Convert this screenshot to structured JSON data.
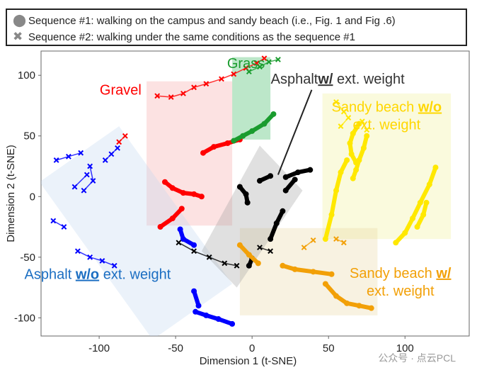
{
  "legend": {
    "items": [
      {
        "marker": "circle",
        "glyph": "⬤",
        "label": "Sequence #1: walking on the campus and sandy beach (i.e., Fig. 1 and Fig .6)"
      },
      {
        "marker": "cross",
        "glyph": "✖",
        "label": "Sequence #2: walking under the same conditions as the sequence #1"
      }
    ]
  },
  "watermark": "公众号 · 点云PCL",
  "chart_data": {
    "type": "scatter",
    "title": "",
    "xlabel": "Dimension 1 (t-SNE)",
    "ylabel": "Dimension 2 (t-SNE)",
    "xlim": [
      -138,
      142
    ],
    "ylim": [
      -115,
      120
    ],
    "xticks": [
      -100,
      -50,
      0,
      50,
      100
    ],
    "yticks": [
      -100,
      -50,
      0,
      50,
      100
    ],
    "regions": [
      {
        "name": "grass",
        "color": "#22b14c",
        "corners": [
          [
            -13,
            115
          ],
          [
            12,
            115
          ],
          [
            12,
            47
          ],
          [
            -13,
            47
          ]
        ]
      },
      {
        "name": "gravel",
        "color": "#f4a0a0",
        "corners": [
          [
            -69,
            95
          ],
          [
            -13,
            95
          ],
          [
            -13,
            -24
          ],
          [
            -69,
            -24
          ]
        ]
      },
      {
        "name": "sandy-wo",
        "color": "#f0f090",
        "corners": [
          [
            46,
            85
          ],
          [
            130,
            85
          ],
          [
            130,
            -35
          ],
          [
            46,
            -35
          ]
        ]
      },
      {
        "name": "sandy-w",
        "color": "#e8d39a",
        "corners": [
          [
            -8,
            -26
          ],
          [
            82,
            -26
          ],
          [
            82,
            -98
          ],
          [
            -8,
            -98
          ]
        ]
      },
      {
        "name": "asphalt-wo",
        "color": "#bcd4ee",
        "corners": [
          [
            -87,
            58
          ],
          [
            -139,
            12
          ],
          [
            -65,
            -118
          ],
          [
            -13,
            -72
          ]
        ]
      },
      {
        "name": "asphalt-w",
        "color": "#999999",
        "corners": [
          [
            5,
            42
          ],
          [
            -33,
            -45
          ],
          [
            -10,
            -75
          ],
          [
            33,
            5
          ]
        ]
      }
    ],
    "series": [
      {
        "name": "Gravel",
        "color": "#ff0000",
        "seq1": [
          [
            [
              -57,
              12
            ],
            [
              -52,
              7
            ],
            [
              -45,
              3
            ],
            [
              -38,
              2
            ],
            [
              -33,
              0
            ]
          ],
          [
            [
              -32,
              36
            ],
            [
              -25,
              41
            ],
            [
              -16,
              44
            ],
            [
              -8,
              47
            ]
          ],
          [
            [
              -60,
              -25
            ],
            [
              -52,
              -18
            ],
            [
              -46,
              -10
            ]
          ]
        ],
        "seq2": [
          [
            [
              -62,
              83
            ],
            [
              -53,
              82
            ],
            [
              -45,
              85
            ],
            [
              -38,
              90
            ],
            [
              -30,
              93
            ],
            [
              -20,
              97
            ],
            [
              -12,
              101
            ],
            [
              -4,
              106
            ],
            [
              3,
              110
            ],
            [
              8,
              114
            ]
          ],
          [
            [
              -83,
              50
            ],
            [
              -87,
              45
            ]
          ]
        ]
      },
      {
        "name": "Grass",
        "color": "#1a9c2e",
        "seq1": [
          [
            [
              -12,
              46
            ],
            [
              -6,
              50
            ],
            [
              0,
              54
            ],
            [
              8,
              60
            ],
            [
              14,
              68
            ]
          ]
        ],
        "seq2": [
          [
            [
              -2,
              103
            ],
            [
              5,
              107
            ],
            [
              11,
              111
            ],
            [
              17,
              113
            ]
          ]
        ]
      },
      {
        "name": "Asphalt w/o ext. weight",
        "color": "#0000ff",
        "seq1": [
          [
            [
              -47,
              -27
            ],
            [
              -45,
              -35
            ],
            [
              -38,
              -40
            ]
          ],
          [
            [
              -37,
              -95
            ],
            [
              -30,
              -98
            ],
            [
              -22,
              -101
            ],
            [
              -13,
              -105
            ]
          ],
          [
            [
              -38,
              -78
            ],
            [
              -35,
              -90
            ]
          ]
        ],
        "seq2": [
          [
            [
              -128,
              30
            ],
            [
              -120,
              33
            ],
            [
              -112,
              36
            ]
          ],
          [
            [
              -114,
              -45
            ],
            [
              -106,
              -50
            ],
            [
              -98,
              -53
            ],
            [
              -90,
              -57
            ]
          ],
          [
            [
              -130,
              -20
            ],
            [
              -123,
              -25
            ]
          ],
          [
            [
              -106,
              25
            ],
            [
              -104,
              13
            ],
            [
              -110,
              5
            ]
          ],
          [
            [
              -96,
              30
            ],
            [
              -92,
              35
            ],
            [
              -88,
              40
            ]
          ],
          [
            [
              -108,
              18
            ],
            [
              -116,
              8
            ]
          ]
        ]
      },
      {
        "name": "Asphalt w/ ext. weight",
        "color": "#000000",
        "seq1": [
          [
            [
              -8,
              8
            ],
            [
              -4,
              2
            ],
            [
              -3,
              -5
            ]
          ],
          [
            [
              5,
              13
            ],
            [
              12,
              17
            ]
          ],
          [
            [
              22,
              16
            ],
            [
              30,
              20
            ],
            [
              38,
              22
            ]
          ],
          [
            [
              22,
              5
            ],
            [
              28,
              14
            ]
          ],
          [
            [
              12,
              -35
            ],
            [
              16,
              -22
            ],
            [
              20,
              -12
            ]
          ],
          [
            [
              -2,
              -57
            ],
            [
              0,
              -51
            ]
          ]
        ],
        "seq2": [
          [
            [
              -48,
              -38
            ],
            [
              -38,
              -45
            ],
            [
              -28,
              -50
            ],
            [
              -18,
              -55
            ],
            [
              -10,
              -57
            ]
          ],
          [
            [
              5,
              -42
            ],
            [
              12,
              -45
            ]
          ]
        ]
      },
      {
        "name": "Sandy beach w/o ext. weight",
        "color": "#ffe800",
        "seq1": [
          [
            [
              70,
              60
            ],
            [
              66,
              52
            ],
            [
              64,
              44
            ],
            [
              65,
              35
            ],
            [
              68,
              28
            ]
          ],
          [
            [
              75,
              50
            ],
            [
              73,
              40
            ],
            [
              70,
              30
            ],
            [
              68,
              22
            ],
            [
              66,
              15
            ]
          ],
          [
            [
              62,
              30
            ],
            [
              58,
              20
            ],
            [
              55,
              5
            ],
            [
              52,
              -15
            ],
            [
              48,
              -35
            ]
          ],
          [
            [
              94,
              -38
            ],
            [
              100,
              -30
            ],
            [
              105,
              -18
            ],
            [
              110,
              -5
            ],
            [
              116,
              10
            ],
            [
              120,
              24
            ]
          ],
          [
            [
              108,
              -25
            ],
            [
              112,
              -15
            ],
            [
              114,
              -5
            ]
          ]
        ],
        "seq2": [
          [
            [
              55,
              78
            ],
            [
              60,
              70
            ],
            [
              63,
              65
            ],
            [
              58,
              58
            ]
          ],
          [
            [
              72,
              62
            ],
            [
              75,
              55
            ]
          ]
        ]
      },
      {
        "name": "Sandy beach w/ ext. weight",
        "color": "#f2a007",
        "seq1": [
          [
            [
              20,
              -57
            ],
            [
              28,
              -60
            ],
            [
              40,
              -62
            ],
            [
              52,
              -64
            ]
          ],
          [
            [
              48,
              -72
            ],
            [
              55,
              -82
            ],
            [
              62,
              -88
            ],
            [
              70,
              -90
            ],
            [
              78,
              -92
            ]
          ],
          [
            [
              -8,
              -40
            ],
            [
              -2,
              -48
            ],
            [
              4,
              -55
            ]
          ]
        ],
        "seq2": [
          [
            [
              34,
              -42
            ],
            [
              40,
              -36
            ]
          ],
          [
            [
              55,
              -35
            ],
            [
              60,
              -38
            ]
          ]
        ]
      }
    ],
    "labels": [
      {
        "text": "Grass",
        "anchor": [
          -4,
          106
        ],
        "color": "#1a9c2e"
      },
      {
        "text": "Gravel",
        "anchor": [
          -86,
          84
        ],
        "color": "#ff0000"
      },
      {
        "text": "Asphalt",
        "emph": "w/",
        "rest": " ext. weight",
        "anchor": [
          56,
          93
        ],
        "color": "#333333",
        "pointer_from": [
          39,
          88
        ],
        "pointer_to": [
          17,
          18
        ]
      },
      {
        "text": "Sandy beach ",
        "emph": "w/o",
        "line2": "ext. weight",
        "anchor": [
          88,
          70
        ],
        "color": "#ffd700"
      },
      {
        "text": "Asphalt ",
        "emph": "w/o",
        "rest": " ext. weight",
        "anchor": [
          -101,
          -68
        ],
        "color": "#1b6ec2"
      },
      {
        "text": "Sandy beach ",
        "emph": "w/",
        "line2": "ext. weight",
        "anchor": [
          97,
          -67
        ],
        "color": "#f2a007"
      }
    ]
  }
}
